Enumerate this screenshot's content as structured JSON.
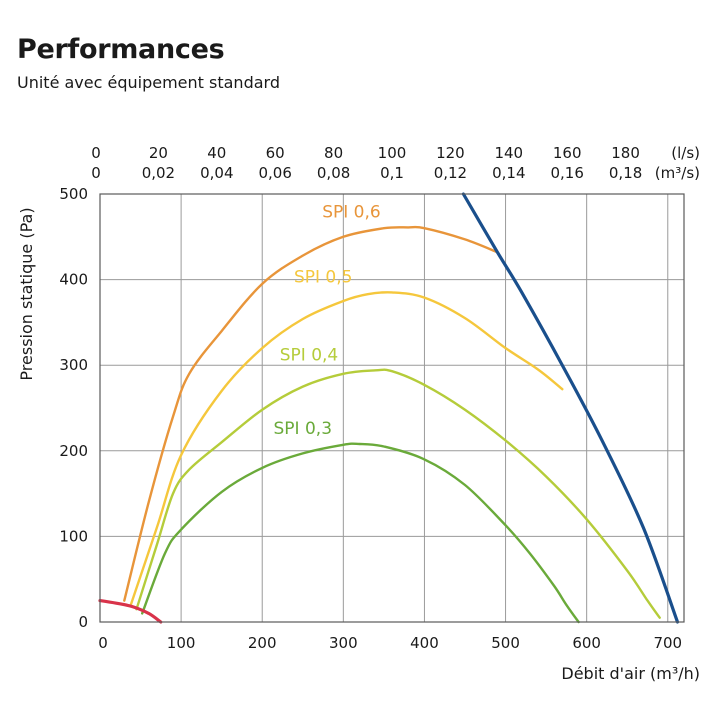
{
  "header": {
    "title": "Performances",
    "subtitle": "Unité avec équipement standard"
  },
  "chart_data": {
    "type": "line",
    "title": "Performances",
    "subtitle": "Unité avec équipement standard",
    "xlabel": "Débit d'air (m³/h)",
    "ylabel": "Pression statique (Pa)",
    "xlim": [
      0,
      720
    ],
    "ylim": [
      0,
      500
    ],
    "x_ticks": [
      "0",
      "100",
      "200",
      "300",
      "400",
      "500",
      "600",
      "700"
    ],
    "y_ticks": [
      "0",
      "100",
      "200",
      "300",
      "400",
      "500"
    ],
    "top_axis_ls": [
      "0",
      "20",
      "40",
      "60",
      "80",
      "100",
      "120",
      "140",
      "160",
      "180"
    ],
    "top_axis_ls_unit": "(l/s)",
    "top_axis_m3s": [
      "0",
      "0,02",
      "0,04",
      "0,06",
      "0,08",
      "0,1",
      "0,12",
      "0,14",
      "0,16",
      "0,18"
    ],
    "top_axis_m3s_unit": "(m³/s)",
    "grid": true,
    "series": [
      {
        "name": "SPI 0,6",
        "color": "#e8953a",
        "x": [
          30,
          60,
          90,
          110,
          150,
          200,
          250,
          300,
          350,
          380,
          400,
          450,
          490
        ],
        "y": [
          25,
          140,
          240,
          290,
          340,
          395,
          428,
          450,
          460,
          461,
          460,
          447,
          432
        ]
      },
      {
        "name": "SPI 0,5",
        "color": "#f5c73c",
        "x": [
          38,
          70,
          100,
          150,
          200,
          250,
          300,
          330,
          360,
          400,
          450,
          500,
          540,
          570
        ],
        "y": [
          20,
          110,
          195,
          270,
          320,
          354,
          375,
          383,
          385,
          379,
          355,
          320,
          295,
          272
        ]
      },
      {
        "name": "SPI 0,4",
        "color": "#b5cc3a",
        "x": [
          45,
          70,
          90,
          110,
          150,
          200,
          250,
          300,
          340,
          360,
          400,
          450,
          500,
          550,
          600,
          650,
          675,
          690
        ],
        "y": [
          15,
          90,
          150,
          178,
          210,
          248,
          275,
          290,
          294,
          293,
          277,
          248,
          212,
          170,
          120,
          60,
          25,
          5
        ]
      },
      {
        "name": "SPI 0,3",
        "color": "#6aaa3a",
        "x": [
          52,
          80,
          100,
          150,
          200,
          250,
          300,
          320,
          350,
          400,
          450,
          500,
          530,
          560,
          575,
          590
        ],
        "y": [
          10,
          80,
          108,
          152,
          180,
          197,
          207,
          208,
          205,
          190,
          160,
          113,
          80,
          42,
          20,
          0
        ]
      },
      {
        "name": "",
        "color": "#1a4f8c",
        "x": [
          448,
          490,
          520,
          570,
          620,
          670,
          712
        ],
        "y": [
          500,
          432,
          385,
          300,
          210,
          110,
          0
        ]
      },
      {
        "name": "",
        "color": "#d9334a",
        "x": [
          0,
          20,
          40,
          60,
          75
        ],
        "y": [
          25,
          22,
          18,
          10,
          0
        ]
      }
    ]
  }
}
